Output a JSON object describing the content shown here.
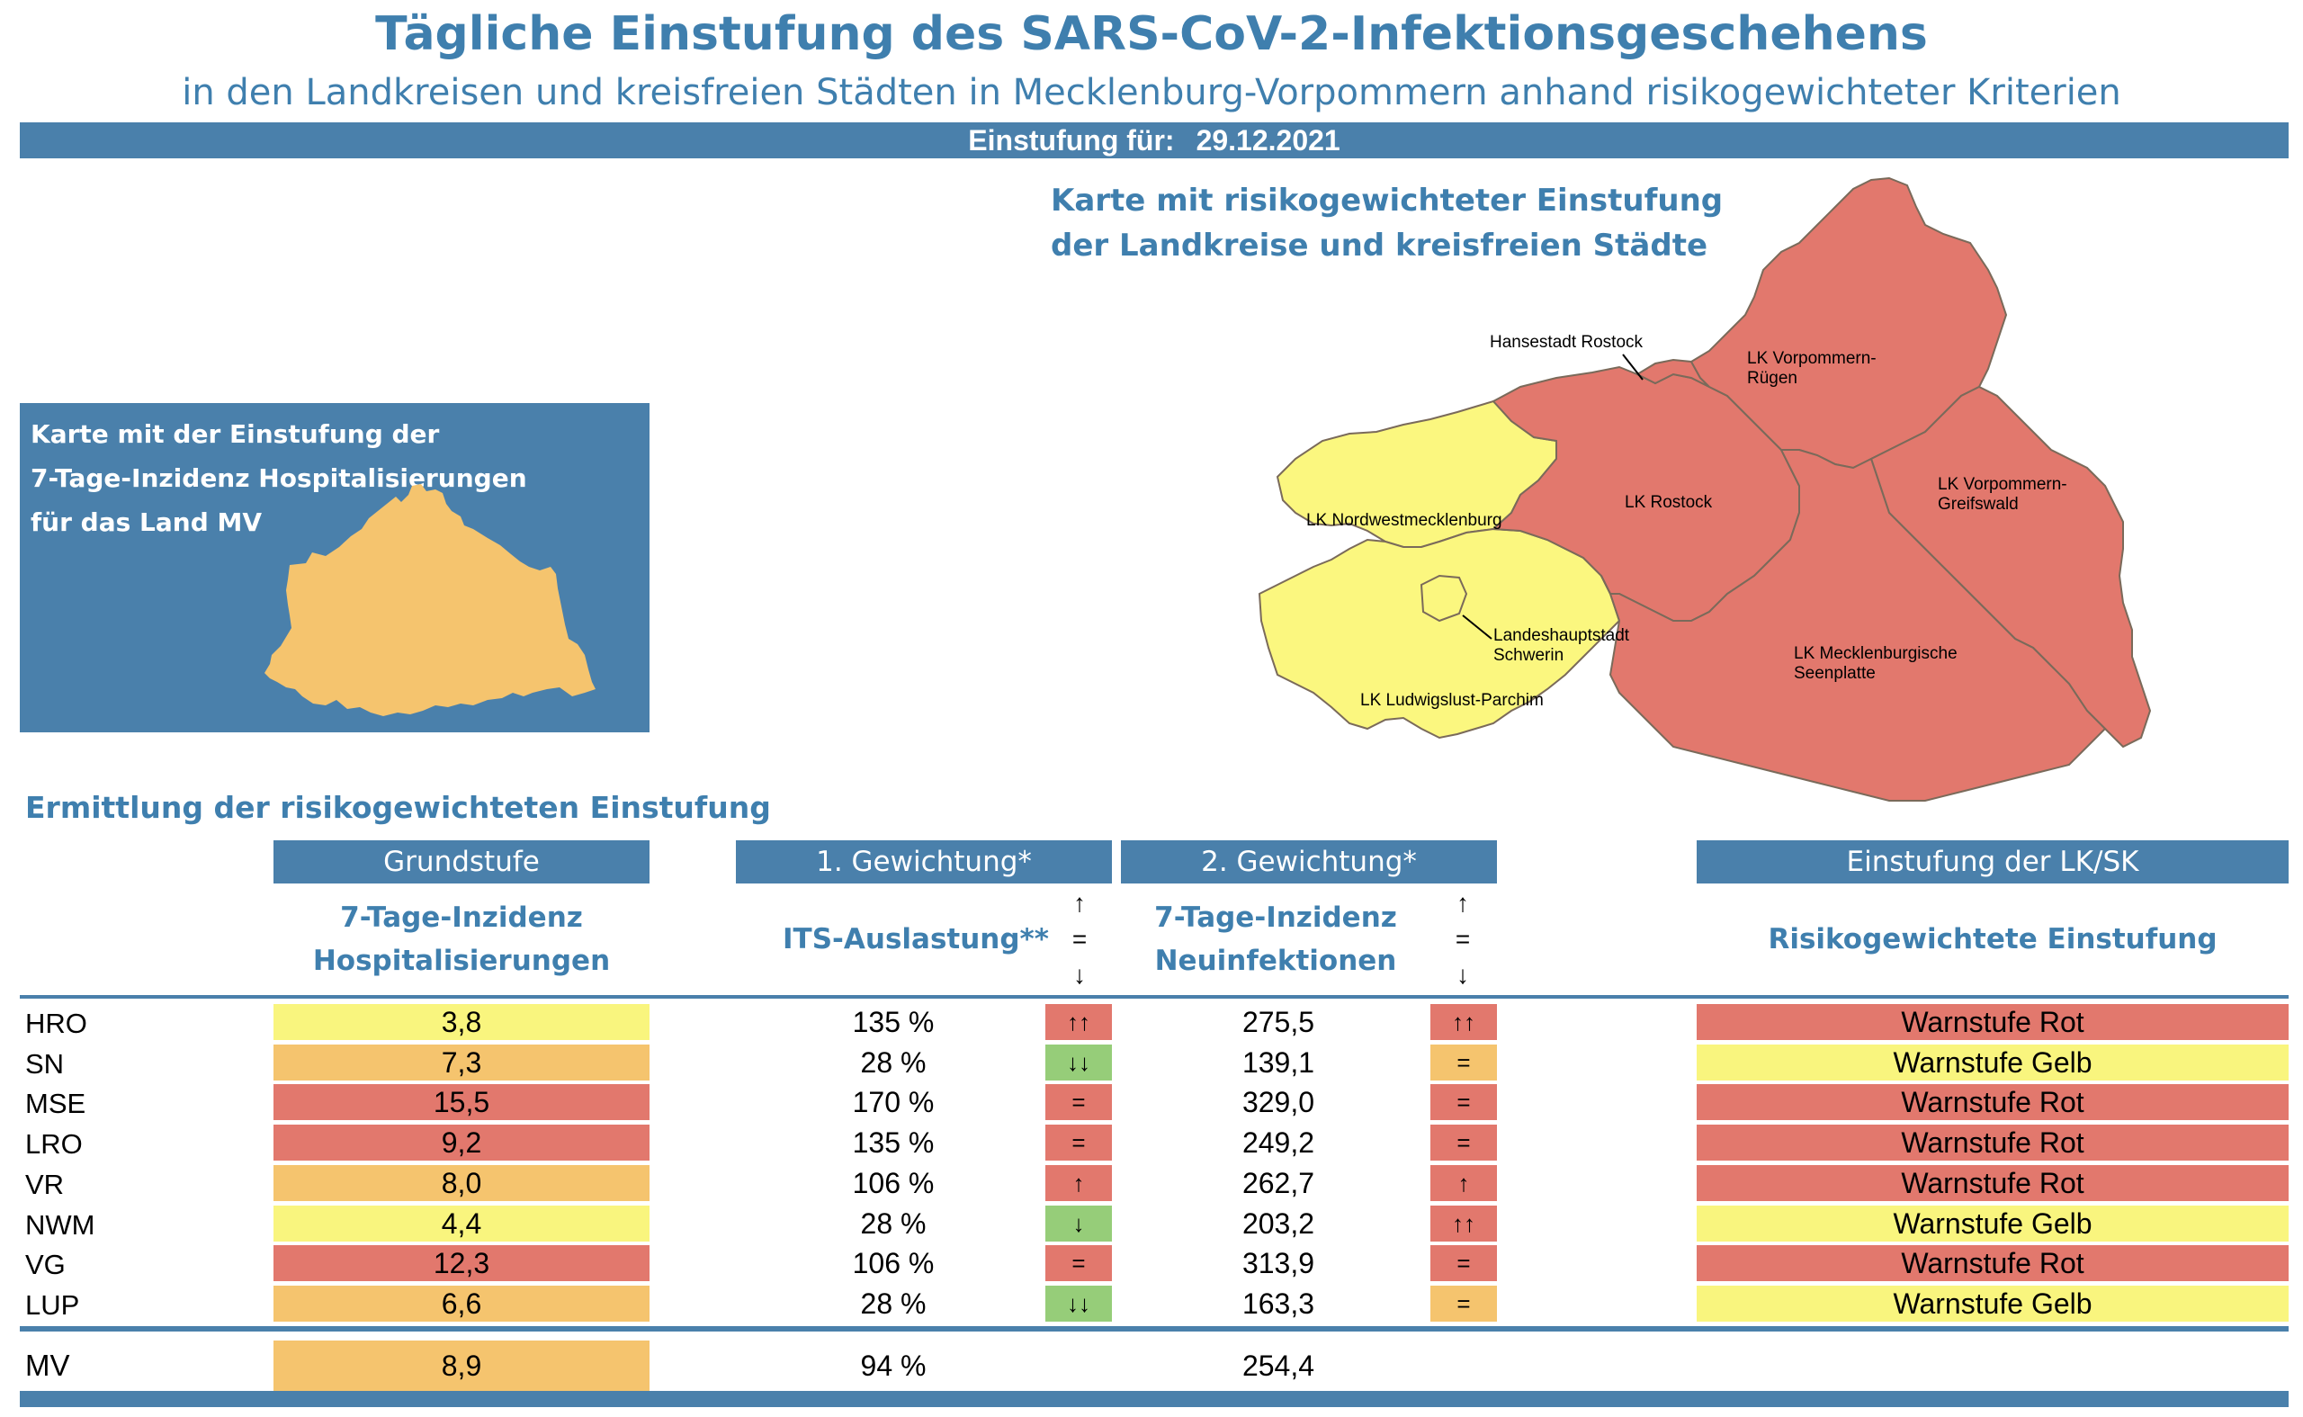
{
  "title": "Tägliche Einstufung des SARS-CoV-2-Infektionsgeschehens",
  "subtitle": "in den Landkreisen und kreisfreien Städten in Mecklenburg-Vorpommern anhand risikogewichteter Kriterien",
  "date_label": "Einstufung für:",
  "date_value": "29.12.2021",
  "map_title_line1": "Karte mit risikogewichteter Einstufung",
  "map_title_line2": "der Landkreise und kreisfreien Städte",
  "mv_box": {
    "line1": "Karte mit der Einstufung der",
    "line2": "7-Tage-Inzidenz Hospitalisierungen",
    "line3": "für das Land MV"
  },
  "map_labels": {
    "rostock_city": "Hansestadt Rostock",
    "vr_1": "LK Vorpommern-",
    "vr_2": "Rügen",
    "lro": "LK Rostock",
    "vg_1": "LK Vorpommern-",
    "vg_2": "Greifswald",
    "nwm": "LK Nordwestmecklenburg",
    "sn_1": "Landeshauptstadt",
    "sn_2": "Schwerin",
    "mse_1": "LK Mecklenburgische",
    "mse_2": "Seenplatte",
    "lup": "LK Ludwigslust-Parchim"
  },
  "section_title": "Ermittlung der risikogewichteten Einstufung",
  "headers": {
    "grundstufe": "Grundstufe",
    "gew1": "1. Gewichtung*",
    "gew2": "2. Gewichtung*",
    "einstufung": "Einstufung der LK/SK"
  },
  "subheaders": {
    "hosp_1": "7-Tage-Inzidenz",
    "hosp_2": "Hospitalisierungen",
    "its": "ITS-Auslastung**",
    "neu_1": "7-Tage-Inzidenz",
    "neu_2": "Neuinfektionen",
    "risk": "Risikogewichtete Einstufung"
  },
  "legend_arrows": [
    "↑",
    "=",
    "↓"
  ],
  "colors": {
    "blue": "#4a80ab",
    "title_blue": "#3f7fae",
    "red": "#e2786d",
    "yellow": "#f9f57e",
    "orange": "#f5c46e",
    "green": "#96cd79",
    "map_red": "#e2786d",
    "map_yellow": "#fbf77f",
    "mv_orange": "#f5c46e"
  },
  "rows": [
    {
      "code": "HRO",
      "hosp": "3,8",
      "hosp_color": "yellow",
      "its": "135 %",
      "its_trend": "↑↑",
      "its_trend_color": "red",
      "neu": "275,5",
      "neu_trend": "↑↑",
      "neu_trend_color": "red",
      "risk": "Warnstufe Rot",
      "risk_color": "red"
    },
    {
      "code": "SN",
      "hosp": "7,3",
      "hosp_color": "orange",
      "its": "28 %",
      "its_trend": "↓↓",
      "its_trend_color": "green",
      "neu": "139,1",
      "neu_trend": "=",
      "neu_trend_color": "orange",
      "risk": "Warnstufe Gelb",
      "risk_color": "yellow"
    },
    {
      "code": "MSE",
      "hosp": "15,5",
      "hosp_color": "red",
      "its": "170 %",
      "its_trend": "=",
      "its_trend_color": "red",
      "neu": "329,0",
      "neu_trend": "=",
      "neu_trend_color": "red",
      "risk": "Warnstufe Rot",
      "risk_color": "red"
    },
    {
      "code": "LRO",
      "hosp": "9,2",
      "hosp_color": "red",
      "its": "135 %",
      "its_trend": "=",
      "its_trend_color": "red",
      "neu": "249,2",
      "neu_trend": "=",
      "neu_trend_color": "red",
      "risk": "Warnstufe Rot",
      "risk_color": "red"
    },
    {
      "code": "VR",
      "hosp": "8,0",
      "hosp_color": "orange",
      "its": "106 %",
      "its_trend": "↑",
      "its_trend_color": "red",
      "neu": "262,7",
      "neu_trend": "↑",
      "neu_trend_color": "red",
      "risk": "Warnstufe Rot",
      "risk_color": "red"
    },
    {
      "code": "NWM",
      "hosp": "4,4",
      "hosp_color": "yellow",
      "its": "28 %",
      "its_trend": "↓",
      "its_trend_color": "green",
      "neu": "203,2",
      "neu_trend": "↑↑",
      "neu_trend_color": "red",
      "risk": "Warnstufe Gelb",
      "risk_color": "yellow"
    },
    {
      "code": "VG",
      "hosp": "12,3",
      "hosp_color": "red",
      "its": "106 %",
      "its_trend": "=",
      "its_trend_color": "red",
      "neu": "313,9",
      "neu_trend": "=",
      "neu_trend_color": "red",
      "risk": "Warnstufe Rot",
      "risk_color": "red"
    },
    {
      "code": "LUP",
      "hosp": "6,6",
      "hosp_color": "orange",
      "its": "28 %",
      "its_trend": "↓↓",
      "its_trend_color": "green",
      "neu": "163,3",
      "neu_trend": "=",
      "neu_trend_color": "orange",
      "risk": "Warnstufe Gelb",
      "risk_color": "yellow"
    }
  ],
  "total": {
    "code": "MV",
    "hosp": "8,9",
    "hosp_color": "orange",
    "its": "94 %",
    "neu": "254,4"
  }
}
